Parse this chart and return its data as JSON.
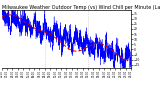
{
  "title": "Milwaukee Weather Outdoor Temp (vs) Wind Chill per Minute (Last 24 Hours)",
  "title_fontsize": 3.5,
  "title_color": "#000000",
  "bg_color": "#ffffff",
  "plot_bg_color": "#ffffff",
  "blue_color": "#0000ff",
  "red_color": "#cc0000",
  "ylim_min": -18,
  "ylim_max": 38,
  "yticks": [
    35,
    30,
    25,
    20,
    15,
    10,
    5,
    0,
    -5,
    -10,
    -15
  ],
  "n_points": 1440,
  "vline_positions": [
    480,
    960
  ],
  "vline_color": "#bbbbbb",
  "seed": 42
}
